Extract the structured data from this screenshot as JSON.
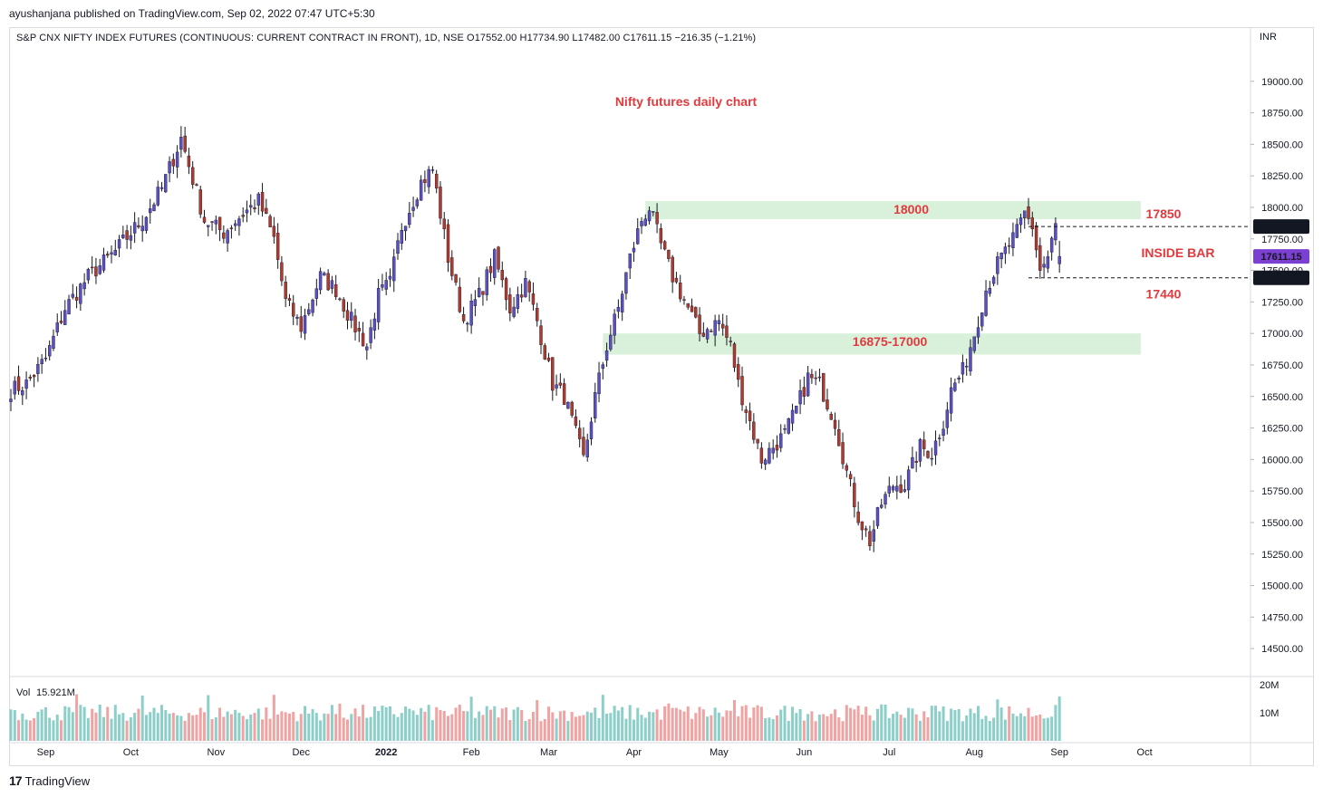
{
  "header": {
    "published": "ayushanjana published on TradingView.com, Sep 02, 2022 07:47 UTC+5:30",
    "symbol_line": "S&P CNX NIFTY INDEX FUTURES (CONTINUOUS: CURRENT CONTRACT IN FRONT), 1D, NSE  O17552.00  H17734.90  L17482.00  C17611.15  −216.35 (−1.21%)"
  },
  "footer": {
    "logo_text": "TradingView"
  },
  "colors": {
    "up": "#5b4fc4",
    "down": "#b03a2e",
    "vol_up": "#8ccfc9",
    "vol_down": "#f0a3a3",
    "zone": "#d9f0da",
    "annotation": "#e03a3e",
    "last_price_bg": "#7b3fd1",
    "level_bg": "#131722"
  },
  "chart_data": {
    "type": "candlestick",
    "title": "Nifty futures daily chart",
    "currency": "INR",
    "ylim": [
      14300,
      19300
    ],
    "y_ticks": [
      19000,
      18750,
      18500,
      18250,
      18000,
      17750,
      17500,
      17250,
      17000,
      16750,
      16500,
      16250,
      16000,
      15750,
      15500,
      15250,
      15000,
      14750,
      14500
    ],
    "y_tick_labels": [
      "19000.00",
      "18750.00",
      "18500.00",
      "18250.00",
      "18000.00",
      "17750.00",
      "17500.00",
      "17250.00",
      "17000.00",
      "16750.00",
      "16500.00",
      "16250.00",
      "16000.00",
      "15750.00",
      "15500.00",
      "15250.00",
      "15000.00",
      "14750.00",
      "14500.00"
    ],
    "x_labels": [
      {
        "label": "Sep",
        "index": 9
      },
      {
        "label": "Oct",
        "index": 31
      },
      {
        "label": "Nov",
        "index": 53
      },
      {
        "label": "Dec",
        "index": 75
      },
      {
        "label": "2022",
        "index": 97
      },
      {
        "label": "Feb",
        "index": 119
      },
      {
        "label": "Mar",
        "index": 139
      },
      {
        "label": "Apr",
        "index": 161
      },
      {
        "label": "May",
        "index": 183
      },
      {
        "label": "Jun",
        "index": 205
      },
      {
        "label": "Jul",
        "index": 227
      },
      {
        "label": "Aug",
        "index": 249
      },
      {
        "label": "Sep",
        "index": 271
      },
      {
        "label": "Oct",
        "index": 293
      }
    ],
    "close_anchors": [
      [
        0,
        16550
      ],
      [
        4,
        16600
      ],
      [
        9,
        16800
      ],
      [
        14,
        17200
      ],
      [
        20,
        17450
      ],
      [
        27,
        17650
      ],
      [
        31,
        17800
      ],
      [
        34,
        17900
      ],
      [
        39,
        18150
      ],
      [
        44,
        18550
      ],
      [
        50,
        17900
      ],
      [
        55,
        17800
      ],
      [
        60,
        17950
      ],
      [
        64,
        18050
      ],
      [
        68,
        17750
      ],
      [
        71,
        17250
      ],
      [
        75,
        17050
      ],
      [
        80,
        17450
      ],
      [
        84,
        17350
      ],
      [
        88,
        17100
      ],
      [
        92,
        16900
      ],
      [
        95,
        17300
      ],
      [
        98,
        17400
      ],
      [
        101,
        17850
      ],
      [
        106,
        18200
      ],
      [
        109,
        18300
      ],
      [
        113,
        17600
      ],
      [
        117,
        17100
      ],
      [
        121,
        17300
      ],
      [
        125,
        17600
      ],
      [
        129,
        17200
      ],
      [
        133,
        17400
      ],
      [
        136,
        17100
      ],
      [
        140,
        16600
      ],
      [
        143,
        16500
      ],
      [
        146,
        16200
      ],
      [
        148,
        16000
      ],
      [
        151,
        16500
      ],
      [
        154,
        16900
      ],
      [
        157,
        17200
      ],
      [
        160,
        17600
      ],
      [
        163,
        17900
      ],
      [
        165,
        18000
      ],
      [
        168,
        17700
      ],
      [
        171,
        17450
      ],
      [
        175,
        17200
      ],
      [
        178,
        17000
      ],
      [
        183,
        17100
      ],
      [
        186,
        16900
      ],
      [
        188,
        16600
      ],
      [
        191,
        16300
      ],
      [
        194,
        16000
      ],
      [
        197,
        16100
      ],
      [
        200,
        16200
      ],
      [
        203,
        16400
      ],
      [
        206,
        16650
      ],
      [
        209,
        16600
      ],
      [
        213,
        16300
      ],
      [
        216,
        15900
      ],
      [
        219,
        15550
      ],
      [
        222,
        15350
      ],
      [
        225,
        15650
      ],
      [
        228,
        15800
      ],
      [
        231,
        15800
      ],
      [
        235,
        16100
      ],
      [
        238,
        16050
      ],
      [
        241,
        16300
      ],
      [
        243,
        16550
      ],
      [
        246,
        16700
      ],
      [
        249,
        17000
      ],
      [
        252,
        17350
      ],
      [
        255,
        17550
      ],
      [
        257,
        17650
      ],
      [
        260,
        17800
      ],
      [
        262,
        17950
      ],
      [
        264,
        17850
      ],
      [
        266,
        17500
      ],
      [
        268,
        17600
      ],
      [
        270,
        17850
      ],
      [
        271,
        17611
      ]
    ],
    "last_ohlc": {
      "open": 17552.0,
      "high": 17734.9,
      "low": 17482.0,
      "close": 17611.15
    },
    "volume": {
      "label": "Vol",
      "value": "15.921M",
      "ticks": [
        "20M",
        "10M"
      ],
      "tick_values": [
        20,
        10
      ],
      "ymax": 22
    },
    "zones": [
      {
        "label": "18000",
        "from": 17950,
        "to": 18050,
        "start_index": 164,
        "end_index": 292
      },
      {
        "label": "16875-17000",
        "from": 16875,
        "to": 17000,
        "start_index": 153,
        "end_index": 292
      }
    ],
    "levels": [
      {
        "label": "17850",
        "price": 17848.4,
        "tag": "17848.40"
      },
      {
        "label": "17440",
        "price": 17441.4,
        "tag": "17441.40"
      }
    ],
    "last_price_tag": "17611.15",
    "annotations": [
      {
        "text": "INSIDE BAR"
      }
    ]
  }
}
